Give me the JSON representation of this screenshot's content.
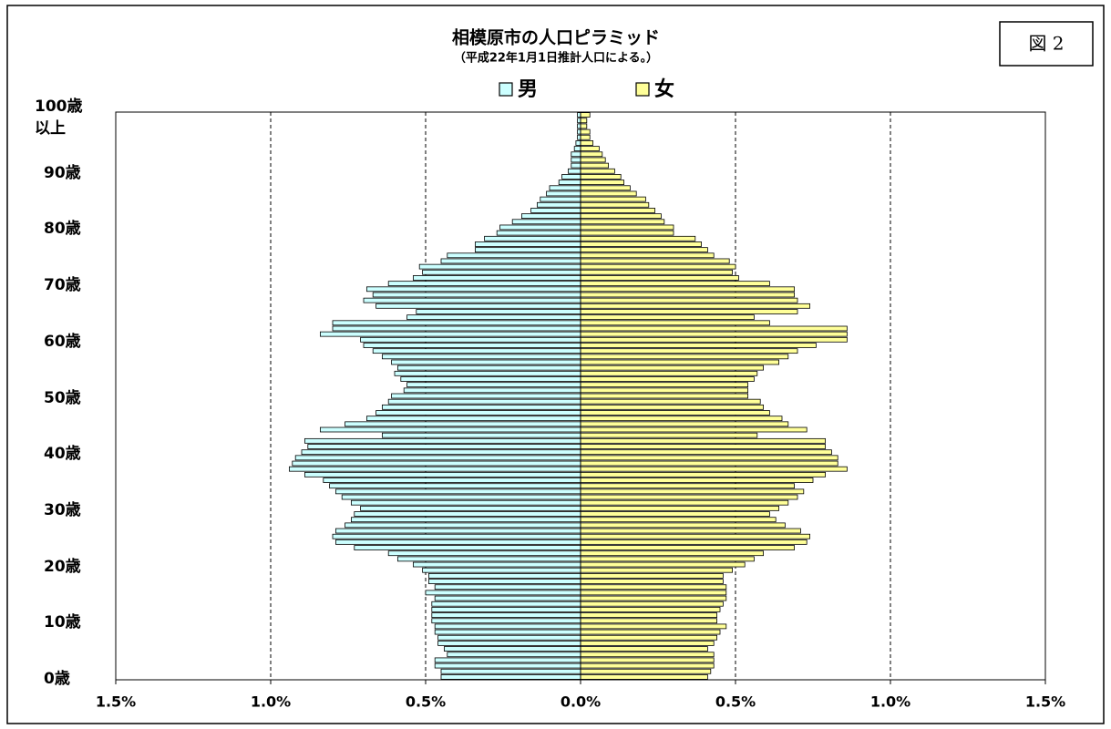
{
  "chart_data": {
    "type": "pyramid",
    "title": "相模原市の人口ピラミッド",
    "subtitle": "（平成22年1月1日推計人口による。）",
    "figure_label": "図 2",
    "categories": [
      "0歳",
      null,
      null,
      null,
      null,
      null,
      null,
      null,
      null,
      null,
      "10歳",
      null,
      null,
      null,
      null,
      null,
      null,
      null,
      null,
      null,
      "20歳",
      null,
      null,
      null,
      null,
      null,
      null,
      null,
      null,
      null,
      "30歳",
      null,
      null,
      null,
      null,
      null,
      null,
      null,
      null,
      null,
      "40歳",
      null,
      null,
      null,
      null,
      null,
      null,
      null,
      null,
      null,
      "50歳",
      null,
      null,
      null,
      null,
      null,
      null,
      null,
      null,
      null,
      "60歳",
      null,
      null,
      null,
      null,
      null,
      null,
      null,
      null,
      null,
      "70歳",
      null,
      null,
      null,
      null,
      null,
      null,
      null,
      null,
      null,
      "80歳",
      null,
      null,
      null,
      null,
      null,
      null,
      null,
      null,
      null,
      "90歳",
      null,
      null,
      null,
      null,
      null,
      null,
      null,
      null,
      null,
      "100歳\n以上"
    ],
    "series": [
      {
        "name": "男",
        "color": "#ccffff",
        "values": [
          -0.45,
          -0.45,
          -0.47,
          -0.47,
          -0.43,
          -0.44,
          -0.46,
          -0.46,
          -0.47,
          -0.47,
          -0.48,
          -0.48,
          -0.48,
          -0.48,
          -0.47,
          -0.5,
          -0.47,
          -0.49,
          -0.49,
          -0.51,
          -0.54,
          -0.59,
          -0.62,
          -0.73,
          -0.79,
          -0.8,
          -0.79,
          -0.76,
          -0.74,
          -0.73,
          -0.71,
          -0.74,
          -0.77,
          -0.79,
          -0.81,
          -0.83,
          -0.89,
          -0.94,
          -0.93,
          -0.92,
          -0.9,
          -0.88,
          -0.89,
          -0.64,
          -0.84,
          -0.76,
          -0.69,
          -0.66,
          -0.64,
          -0.62,
          -0.61,
          -0.57,
          -0.56,
          -0.58,
          -0.6,
          -0.59,
          -0.61,
          -0.64,
          -0.67,
          -0.7,
          -0.71,
          -0.84,
          -0.8,
          -0.8,
          -0.56,
          -0.53,
          -0.66,
          -0.7,
          -0.67,
          -0.69,
          -0.62,
          -0.54,
          -0.51,
          -0.52,
          -0.45,
          -0.43,
          -0.34,
          -0.34,
          -0.31,
          -0.27,
          -0.26,
          -0.22,
          -0.19,
          -0.16,
          -0.14,
          -0.13,
          -0.11,
          -0.1,
          -0.07,
          -0.06,
          -0.04,
          -0.03,
          -0.03,
          -0.03,
          -0.02,
          -0.015,
          -0.01,
          -0.01,
          -0.01,
          -0.01,
          -0.01
        ]
      },
      {
        "name": "女",
        "color": "#ffff99",
        "values": [
          0.41,
          0.42,
          0.43,
          0.43,
          0.43,
          0.41,
          0.43,
          0.44,
          0.45,
          0.47,
          0.44,
          0.44,
          0.45,
          0.46,
          0.47,
          0.47,
          0.47,
          0.46,
          0.46,
          0.49,
          0.53,
          0.56,
          0.59,
          0.69,
          0.73,
          0.74,
          0.71,
          0.66,
          0.63,
          0.61,
          0.64,
          0.67,
          0.7,
          0.72,
          0.69,
          0.75,
          0.79,
          0.86,
          0.83,
          0.83,
          0.81,
          0.79,
          0.79,
          0.57,
          0.73,
          0.67,
          0.65,
          0.61,
          0.59,
          0.58,
          0.54,
          0.54,
          0.54,
          0.56,
          0.57,
          0.59,
          0.64,
          0.67,
          0.7,
          0.76,
          0.86,
          0.86,
          0.86,
          0.61,
          0.56,
          0.7,
          0.74,
          0.7,
          0.69,
          0.69,
          0.61,
          0.51,
          0.49,
          0.5,
          0.48,
          0.43,
          0.41,
          0.39,
          0.37,
          0.3,
          0.3,
          0.27,
          0.26,
          0.24,
          0.22,
          0.21,
          0.18,
          0.16,
          0.14,
          0.13,
          0.11,
          0.09,
          0.08,
          0.07,
          0.06,
          0.04,
          0.03,
          0.03,
          0.02,
          0.02,
          0.03
        ]
      }
    ],
    "xlim": [
      -1.5,
      1.5
    ],
    "xticks": [
      {
        "value": -1.5,
        "label": "1.5%"
      },
      {
        "value": -1.0,
        "label": "1.0%"
      },
      {
        "value": -0.5,
        "label": "0.5%"
      },
      {
        "value": 0,
        "label": "0.0%"
      },
      {
        "value": 0.5,
        "label": "0.5%"
      },
      {
        "value": 1.0,
        "label": "1.0%"
      },
      {
        "value": 1.5,
        "label": "1.5%"
      }
    ],
    "grid": true
  }
}
